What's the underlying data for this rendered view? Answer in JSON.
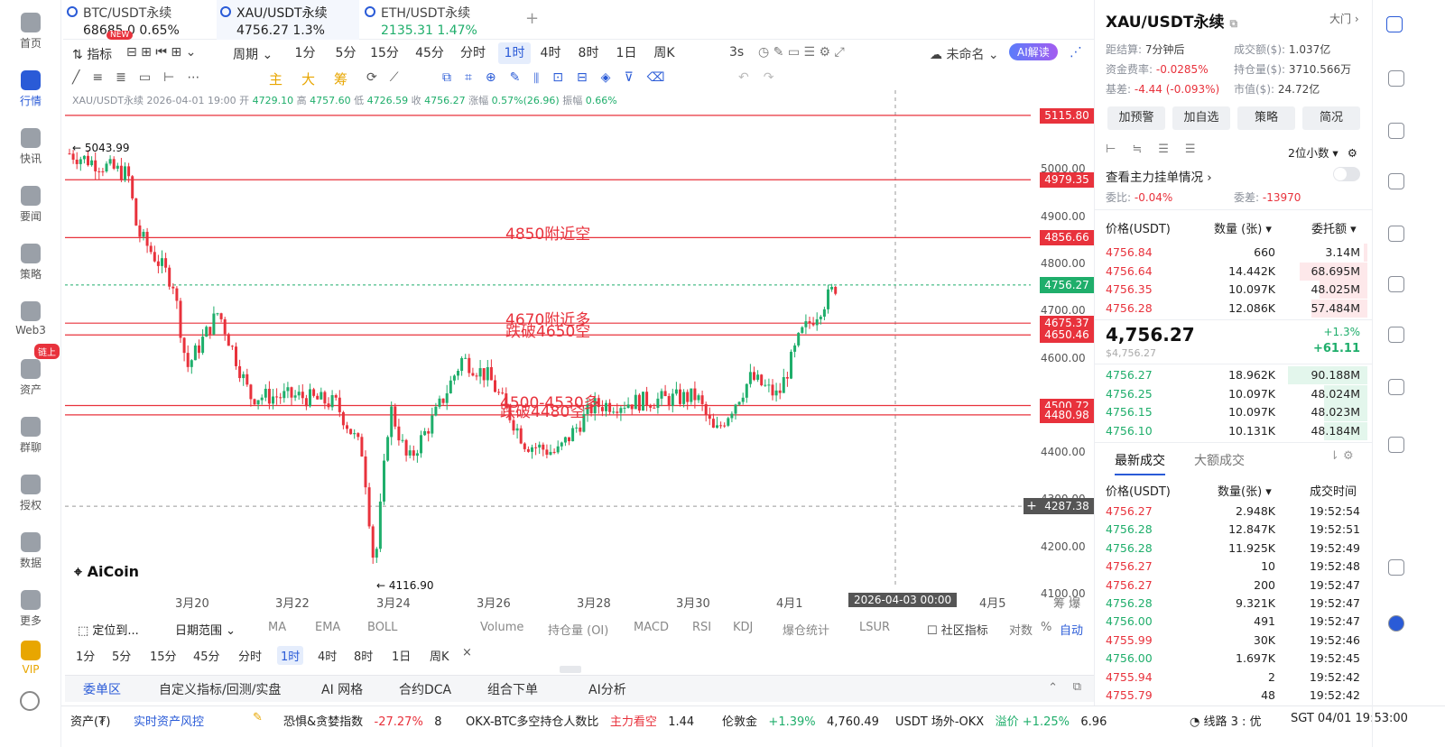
{
  "rail": [
    {
      "label": "首页",
      "icon": "home-icon"
    },
    {
      "label": "行情",
      "icon": "market-icon",
      "active": true
    },
    {
      "label": "快讯",
      "icon": "news-flash-icon"
    },
    {
      "label": "要闻",
      "icon": "headline-icon"
    },
    {
      "label": "策略",
      "icon": "robot-icon"
    },
    {
      "label": "Web3",
      "icon": "web3-icon"
    },
    {
      "label": "资产",
      "icon": "wallet-icon"
    },
    {
      "label": "群聊",
      "icon": "chat-icon"
    },
    {
      "label": "授权",
      "icon": "key-icon"
    },
    {
      "label": "数据",
      "icon": "data-icon"
    },
    {
      "label": "更多",
      "icon": "more-grid-icon"
    },
    {
      "label": "VIP",
      "icon": "vip-diamond-icon"
    }
  ],
  "rail_badge": "链上",
  "tabs": [
    {
      "name": "BTC/USDT永续",
      "price": "68685.0",
      "change": "0.65%",
      "badge": "NEW"
    },
    {
      "name": "XAU/USDT永续",
      "price": "4756.27",
      "change": "1.3%"
    },
    {
      "name": "ETH/USDT永续",
      "price": "2135.31",
      "change": "1.47%"
    }
  ],
  "toolbar": {
    "indicator": "指标",
    "period": "周期",
    "periods": [
      "1分",
      "5分",
      "15分",
      "45分",
      "分时",
      "1时",
      "4时",
      "8时",
      "1日",
      "周K"
    ],
    "selected_period": "1时",
    "refresh": "3s",
    "layout": "未命名",
    "ai": "AI解读"
  },
  "draw_labels": [
    "主",
    "大",
    "筹"
  ],
  "info_line": {
    "symbol": "XAU/USDT永续",
    "time": "2026-04-01 19:00",
    "open_l": "开",
    "open": "4729.10",
    "high_l": "高",
    "high": "4757.60",
    "low_l": "低",
    "low": "4726.59",
    "close_l": "收",
    "close": "4756.27",
    "chg_l": "涨幅",
    "chg": "0.57%(26.96)",
    "amp_l": "振幅",
    "amp": "0.66%"
  },
  "chart_data": {
    "type": "candlestick",
    "ylim": [
      4060,
      5150
    ],
    "y_ticks": [
      5000,
      4900,
      4800,
      4700,
      4600,
      4500,
      4400,
      4300,
      4200,
      4100
    ],
    "x_ticks": [
      "3月20",
      "3月22",
      "3月24",
      "3月26",
      "3月28",
      "3月30",
      "4月1",
      "4月5"
    ],
    "crosshair_x_label": "2026-04-03 00:00",
    "crosshair_price": "4287.38",
    "last_price": "4756.27",
    "high_mark": "5043.99",
    "low_mark": "4116.90",
    "lines": [
      {
        "price": "5115.80"
      },
      {
        "price": "4979.35"
      },
      {
        "price": "4856.66",
        "text": "4850附近空"
      },
      {
        "price": "4675.37",
        "text": "4670附近多"
      },
      {
        "price": "4650.46",
        "text": "跌破4650空"
      },
      {
        "price": "4500.72",
        "text": "4500-4530多"
      },
      {
        "price": "4480.98",
        "text": "跌破4480空"
      }
    ],
    "watermark": "AiCoin"
  },
  "indicator_row": {
    "goto": "定位到...",
    "range": "日期范围",
    "items": [
      "MA",
      "EMA",
      "BOLL",
      "Volume",
      "持仓量 (OI)",
      "MACD",
      "RSI",
      "KDJ",
      "爆仓统计",
      "LSUR"
    ],
    "community": "社区指标",
    "log": "对数",
    "pct": "%",
    "auto": "自动"
  },
  "period_row": [
    "1分",
    "5分",
    "15分",
    "45分",
    "分时",
    "1时",
    "4时",
    "8时",
    "1日",
    "周K"
  ],
  "panel_tabs": [
    "委单区",
    "自定义指标/回测/实盘",
    "AI 网格",
    "合约DCA",
    "组合下单",
    "AI分析"
  ],
  "status": {
    "asset": "资产(₮)",
    "risk": "实时资产风控",
    "fear": "恐惧&贪婪指数",
    "fear_val": "-27.27%",
    "fear_n": "8",
    "okx": "OKX-BTC多空持仓人数比",
    "okx_tag": "主力看空",
    "okx_val": "1.44",
    "gold": "伦敦金",
    "gold_chg": "+1.39%",
    "gold_val": "4,760.49",
    "usdt": "USDT 场外-OKX",
    "usdt_tag": "溢价",
    "usdt_chg": "+1.25%",
    "usdt_val": "6.96",
    "line": "线路 3 : 优",
    "clock": "SGT 04/01 19:53:00"
  },
  "right": {
    "title": "XAU/USDT永续",
    "market": "大门",
    "settle_l": "距结算:",
    "settle": "7分钟后",
    "vol_l": "成交额($):",
    "vol": "1.037亿",
    "fund_l": "资金费率:",
    "fund": "-0.0285%",
    "oi_l": "持仓量($):",
    "oi": "3710.566万",
    "basis_l": "基差:",
    "basis": "-4.44 (-0.093%)",
    "mcap_l": "市值($):",
    "mcap": "24.72亿",
    "buttons": [
      "加预警",
      "加自选",
      "策略",
      "简况"
    ],
    "decimals": "2位小数",
    "depth_link": "查看主力挂单情况",
    "ratio_l": "委比:",
    "ratio": "-0.04%",
    "diff_l": "委差:",
    "diff": "-13970",
    "ob_headers": [
      "价格(USDT)",
      "数量 (张)",
      "委托额"
    ],
    "asks": [
      [
        "4756.84",
        "660",
        "3.14M",
        0.05
      ],
      [
        "4756.64",
        "14.442K",
        "68.695M",
        0.85
      ],
      [
        "4756.35",
        "10.097K",
        "48.025M",
        0.6
      ],
      [
        "4756.28",
        "12.086K",
        "57.484M",
        0.7
      ]
    ],
    "mid": "4,756.27",
    "mid_sub": "$4,756.27",
    "mid_pct": "+1.3%",
    "mid_chg": "+61.11",
    "bids": [
      [
        "4756.27",
        "18.962K",
        "90.188M",
        1.0
      ],
      [
        "4756.25",
        "10.097K",
        "48.024M",
        0.55
      ],
      [
        "4756.15",
        "10.097K",
        "48.023M",
        0.55
      ],
      [
        "4756.10",
        "10.131K",
        "48.184M",
        0.55
      ]
    ],
    "trade_tabs": [
      "最新成交",
      "大额成交"
    ],
    "trade_headers": [
      "价格(USDT)",
      "数量(张)",
      "成交时间"
    ],
    "trades": [
      [
        "4756.27",
        "2.948K",
        "19:52:54",
        "r"
      ],
      [
        "4756.28",
        "12.847K",
        "19:52:51",
        "g"
      ],
      [
        "4756.28",
        "11.925K",
        "19:52:49",
        "g"
      ],
      [
        "4756.27",
        "10",
        "19:52:48",
        "r"
      ],
      [
        "4756.27",
        "200",
        "19:52:47",
        "r"
      ],
      [
        "4756.28",
        "9.321K",
        "19:52:47",
        "g"
      ],
      [
        "4756.00",
        "491",
        "19:52:47",
        "g"
      ],
      [
        "4755.99",
        "30K",
        "19:52:46",
        "r"
      ],
      [
        "4756.00",
        "1.697K",
        "19:52:45",
        "g"
      ],
      [
        "4755.94",
        "2",
        "19:52:42",
        "r"
      ],
      [
        "4755.79",
        "48",
        "19:52:42",
        "r"
      ]
    ]
  }
}
